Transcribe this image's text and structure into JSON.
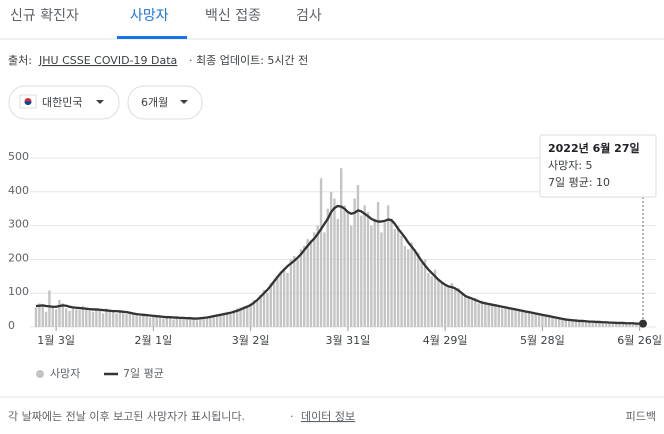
{
  "tabs": [
    "신규 확진자",
    "사망자",
    "백신 접종",
    "검사"
  ],
  "source": {
    "label": "출처:",
    "link": "JHU CSSE COVID-19 Data",
    "updated": "· 최종 업데이트: 5시간 전"
  },
  "filters": [
    "대한민국",
    "6개월"
  ],
  "chart_data": {
    "type": "bar",
    "categories": [
      null,
      null,
      null,
      null,
      null,
      null,
      "1월 3일",
      null,
      null,
      null,
      null,
      null,
      null,
      null,
      null,
      null,
      null,
      null,
      null,
      null,
      null,
      null,
      null,
      null,
      null,
      null,
      null,
      null,
      null,
      null,
      null,
      null,
      null,
      null,
      null,
      "2월 1일",
      null,
      null,
      null,
      null,
      null,
      null,
      null,
      null,
      null,
      null,
      null,
      null,
      null,
      null,
      null,
      null,
      null,
      null,
      null,
      null,
      null,
      null,
      null,
      null,
      null,
      null,
      null,
      null,
      "3월 2일",
      null,
      null,
      null,
      null,
      null,
      null,
      null,
      null,
      null,
      null,
      null,
      null,
      null,
      null,
      null,
      null,
      null,
      null,
      null,
      null,
      null,
      null,
      null,
      null,
      null,
      null,
      null,
      null,
      "3월 31일",
      null,
      null,
      null,
      null,
      null,
      null,
      null,
      null,
      null,
      null,
      null,
      null,
      null,
      null,
      null,
      null,
      null,
      null,
      null,
      null,
      null,
      null,
      null,
      null,
      null,
      null,
      null,
      null,
      "4월 29일",
      null,
      null,
      null,
      null,
      null,
      null,
      null,
      null,
      null,
      null,
      null,
      null,
      null,
      null,
      null,
      null,
      null,
      null,
      null,
      null,
      null,
      null,
      null,
      null,
      null,
      null,
      null,
      null,
      "5월 28일",
      null,
      null,
      null,
      null,
      null,
      null,
      null,
      null,
      null,
      null,
      null,
      null,
      null,
      null,
      null,
      null,
      null,
      null,
      null,
      null,
      null,
      null,
      null,
      null,
      null,
      null,
      null,
      null,
      "6월 26일",
      null
    ],
    "series": [
      {
        "name": "사망자",
        "type": "bar",
        "color": "#c4c4c4",
        "values": [
          58,
          70,
          65,
          45,
          108,
          62,
          52,
          80,
          70,
          55,
          48,
          60,
          52,
          50,
          62,
          58,
          48,
          45,
          55,
          50,
          40,
          55,
          48,
          45,
          40,
          50,
          42,
          38,
          45,
          38,
          35,
          32,
          40,
          30,
          28,
          30,
          35,
          28,
          25,
          32,
          28,
          22,
          30,
          25,
          28,
          22,
          30,
          24,
          20,
          28,
          30,
          26,
          32,
          35,
          38,
          40,
          42,
          45,
          38,
          50,
          55,
          58,
          62,
          65,
          70,
          80,
          75,
          95,
          110,
          100,
          130,
          140,
          150,
          165,
          175,
          160,
          200,
          210,
          200,
          230,
          240,
          260,
          255,
          280,
          300,
          440,
          280,
          350,
          400,
          380,
          320,
          470,
          360,
          340,
          300,
          380,
          420,
          330,
          360,
          340,
          300,
          320,
          370,
          280,
          310,
          360,
          320,
          290,
          300,
          270,
          240,
          230,
          250,
          230,
          220,
          190,
          200,
          160,
          150,
          170,
          140,
          130,
          120,
          115,
          130,
          110,
          115,
          100,
          95,
          90,
          80,
          85,
          70,
          78,
          75,
          70,
          65,
          68,
          60,
          55,
          60,
          58,
          52,
          55,
          48,
          50,
          45,
          48,
          42,
          40,
          36,
          38,
          32,
          30,
          32,
          30,
          26,
          24,
          22,
          20,
          22,
          20,
          18,
          20,
          16,
          18,
          15,
          14,
          16,
          14,
          15,
          12,
          14,
          11,
          12,
          12,
          10,
          12,
          11,
          9,
          8,
          5
        ]
      },
      {
        "name": "7일 평균",
        "type": "line",
        "color": "#333333",
        "values": [
          62,
          63,
          64,
          62,
          61,
          60,
          60,
          62,
          64,
          63,
          60,
          58,
          57,
          56,
          55,
          54,
          53,
          52,
          52,
          51,
          50,
          49,
          48,
          47,
          47,
          46,
          45,
          44,
          42,
          40,
          38,
          37,
          36,
          35,
          34,
          33,
          32,
          31,
          30,
          29,
          29,
          28,
          28,
          27,
          27,
          26,
          26,
          25,
          25,
          26,
          27,
          28,
          30,
          32,
          34,
          36,
          38,
          40,
          42,
          45,
          48,
          52,
          56,
          60,
          65,
          72,
          80,
          90,
          100,
          110,
          122,
          135,
          148,
          160,
          170,
          180,
          188,
          196,
          205,
          215,
          228,
          240,
          252,
          262,
          275,
          290,
          305,
          320,
          340,
          352,
          358,
          356,
          350,
          340,
          335,
          338,
          345,
          342,
          335,
          328,
          320,
          315,
          312,
          312,
          314,
          318,
          316,
          305,
          290,
          278,
          265,
          250,
          238,
          225,
          210,
          195,
          182,
          170,
          160,
          150,
          140,
          132,
          125,
          120,
          118,
          114,
          108,
          100,
          92,
          88,
          84,
          80,
          76,
          72,
          70,
          68,
          66,
          64,
          62,
          60,
          58,
          56,
          54,
          52,
          50,
          48,
          46,
          44,
          42,
          40,
          38,
          36,
          34,
          32,
          30,
          28,
          26,
          24,
          22,
          21,
          20,
          19,
          18,
          18,
          17,
          16,
          16,
          15,
          15,
          14,
          14,
          13,
          13,
          12,
          12,
          12,
          11,
          11,
          11,
          10,
          10,
          10
        ]
      }
    ],
    "ylim": [
      0,
      500
    ],
    "yticks": [
      0,
      100,
      200,
      300,
      400,
      500
    ],
    "grid": true,
    "tooltip": {
      "date": "2022년 6월 27일",
      "lines": [
        "사망자: 5",
        "7일 평균: 10"
      ]
    }
  },
  "footer": {
    "note": "각 날짜에는 전날 이후 보고된 사망자가 표시됩니다.",
    "sep": "·",
    "link": "데이터 정보",
    "feedback": "피드백"
  }
}
